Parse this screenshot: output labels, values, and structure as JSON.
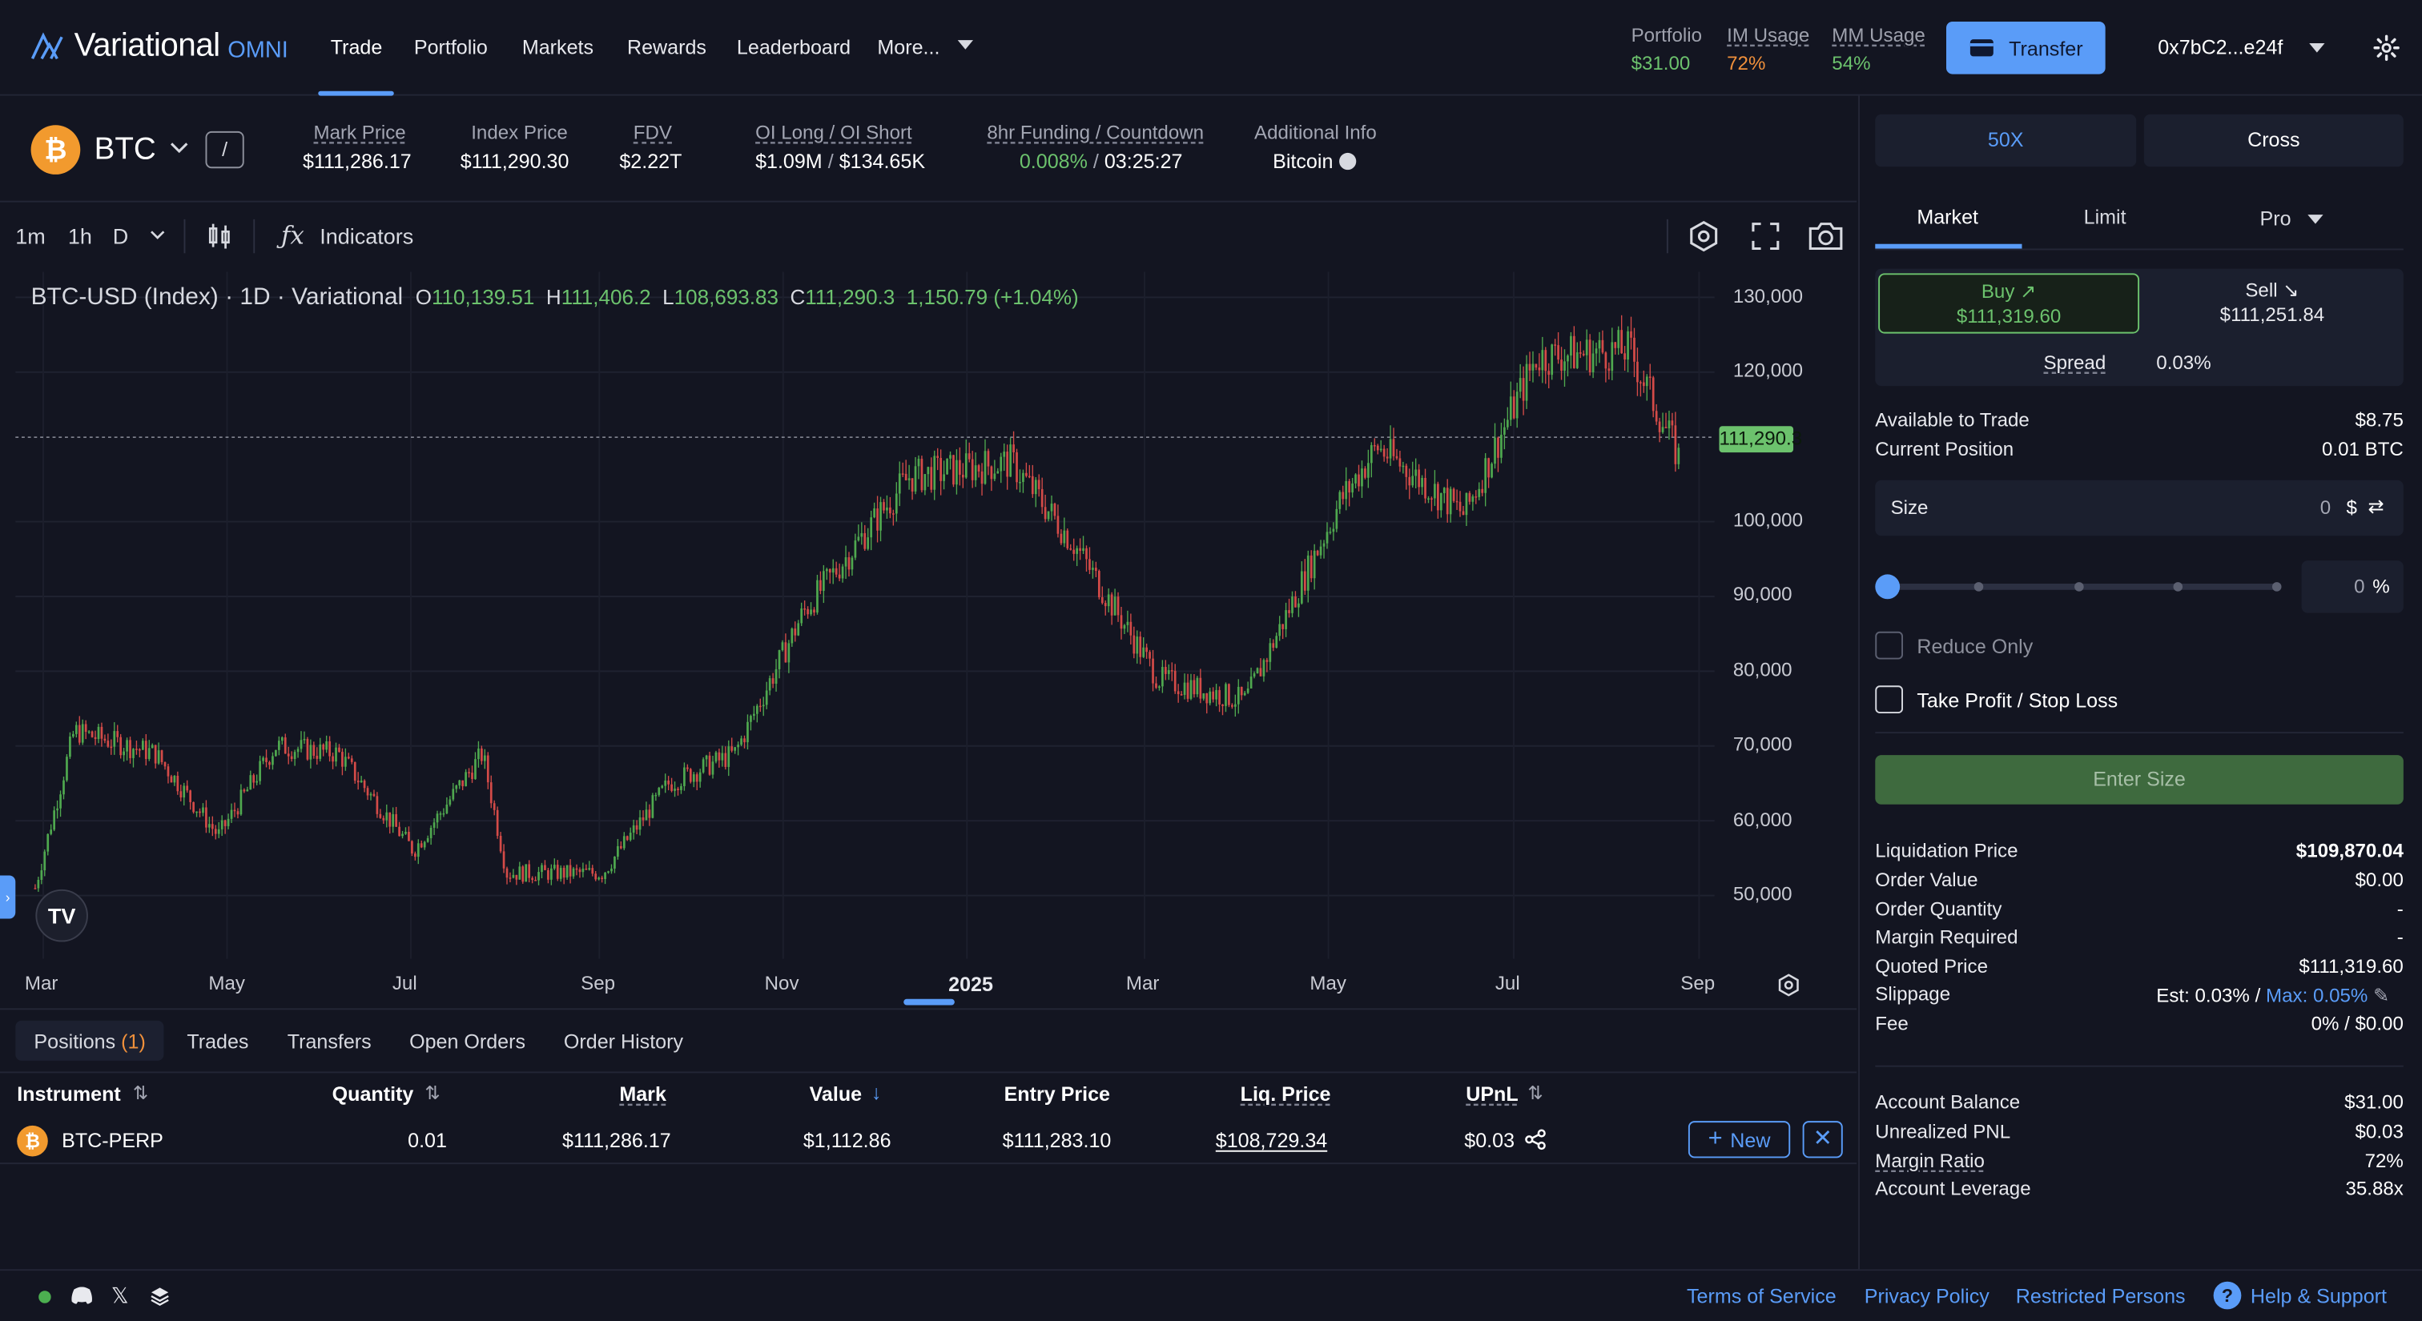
{
  "app": {
    "logo": "Variational",
    "logo_suffix": "OMNI"
  },
  "nav": {
    "items": [
      "Trade",
      "Portfolio",
      "Markets",
      "Rewards",
      "Leaderboard",
      "More..."
    ]
  },
  "header_stats": {
    "portfolio_label": "Portfolio",
    "portfolio_value": "$31.00",
    "im_label": "IM Usage",
    "im_value": "72%",
    "mm_label": "MM Usage",
    "mm_value": "54%"
  },
  "transfer_label": "Transfer",
  "wallet": "0x7bC2...e24f",
  "ticker": {
    "symbol": "BTC",
    "mark_label": "Mark Price",
    "mark_value": "$111,286.17",
    "index_label": "Index Price",
    "index_value": "$111,290.30",
    "fdv_label": "FDV",
    "fdv_value": "$2.22T",
    "oi_label": "OI Long / OI Short",
    "oi_long": "$1.09M",
    "oi_sep": "/",
    "oi_short": "$134.65K",
    "funding_label": "8hr Funding / Countdown",
    "funding_value": "0.008%",
    "funding_sep": "/",
    "countdown": "03:25:27",
    "info_label": "Additional Info",
    "info_value": "Bitcoin"
  },
  "chart_toolbar": {
    "intervals": [
      "1m",
      "1h",
      "D"
    ],
    "indicators": "Indicators"
  },
  "chart_legend": {
    "title": "BTC-USD (Index) · 1D · Variational",
    "o_label": "O",
    "o": "110,139.51",
    "h_label": "H",
    "h": "111,406.2",
    "l_label": "L",
    "l": "108,693.83",
    "c_label": "C",
    "c": "111,290.3",
    "change": "1,150.79 (+1.04%)"
  },
  "chart_data": {
    "type": "candlestick",
    "title": "BTC-USD (Index) · 1D · Variational",
    "x_ticks": [
      "Mar",
      "May",
      "Jul",
      "Sep",
      "Nov",
      "2025",
      "Mar",
      "May",
      "Jul",
      "Sep"
    ],
    "y_ticks": [
      130000,
      120000,
      100000,
      90000,
      80000,
      70000,
      60000,
      50000
    ],
    "ylim": [
      45000,
      132000
    ],
    "last_price_label": "111,290.3",
    "last_price": 111290.3,
    "approx_close_path": [
      {
        "x": "2024-03-01",
        "y": 51000
      },
      {
        "x": "2024-03-14",
        "y": 72000
      },
      {
        "x": "2024-04-10",
        "y": 69000
      },
      {
        "x": "2024-05-01",
        "y": 58000
      },
      {
        "x": "2024-05-20",
        "y": 70000
      },
      {
        "x": "2024-06-10",
        "y": 69000
      },
      {
        "x": "2024-07-05",
        "y": 56000
      },
      {
        "x": "2024-07-28",
        "y": 69000
      },
      {
        "x": "2024-08-05",
        "y": 53000
      },
      {
        "x": "2024-09-06",
        "y": 53000
      },
      {
        "x": "2024-09-28",
        "y": 65000
      },
      {
        "x": "2024-10-20",
        "y": 69000
      },
      {
        "x": "2024-11-12",
        "y": 88000
      },
      {
        "x": "2024-12-17",
        "y": 106000
      },
      {
        "x": "2025-01-20",
        "y": 108000
      },
      {
        "x": "2025-02-10",
        "y": 97000
      },
      {
        "x": "2025-03-10",
        "y": 79000
      },
      {
        "x": "2025-04-08",
        "y": 76000
      },
      {
        "x": "2025-05-10",
        "y": 103000
      },
      {
        "x": "2025-05-22",
        "y": 110000
      },
      {
        "x": "2025-06-20",
        "y": 101000
      },
      {
        "x": "2025-07-14",
        "y": 122000
      },
      {
        "x": "2025-08-14",
        "y": 123000
      },
      {
        "x": "2025-08-31",
        "y": 108000
      }
    ]
  },
  "bottom_tabs": {
    "positions": "Positions",
    "positions_count": "(1)",
    "trades": "Trades",
    "transfers": "Transfers",
    "open_orders": "Open Orders",
    "order_history": "Order History"
  },
  "positions_table": {
    "headers": {
      "instrument": "Instrument",
      "quantity": "Quantity",
      "mark": "Mark",
      "value": "Value",
      "entry": "Entry Price",
      "liq": "Liq. Price",
      "upnl": "UPnL"
    },
    "row": {
      "instrument": "BTC-PERP",
      "quantity": "0.01",
      "mark": "$111,286.17",
      "value": "$1,112.86",
      "entry": "$111,283.10",
      "liq": "$108,729.34",
      "upnl": "$0.03",
      "new": "New"
    }
  },
  "footer": {
    "terms": "Terms of Service",
    "privacy": "Privacy Policy",
    "restricted": "Restricted Persons",
    "help": "Help & Support"
  },
  "order_panel": {
    "leverage": "50X",
    "margin_mode": "Cross",
    "tabs": [
      "Market",
      "Limit",
      "Pro"
    ],
    "buy_label": "Buy",
    "buy_price": "$111,319.60",
    "sell_label": "Sell",
    "sell_price": "$111,251.84",
    "spread_label": "Spread",
    "spread_value": "0.03%",
    "available_label": "Available to Trade",
    "available_value": "$8.75",
    "position_label": "Current Position",
    "position_value": "0.01 BTC",
    "size_label": "Size",
    "size_value": "0",
    "size_unit": "$",
    "slider_pct": "0",
    "pct_unit": "%",
    "reduce_only": "Reduce Only",
    "tp_sl": "Take Profit / Stop Loss",
    "enter_size": "Enter Size",
    "details": [
      {
        "label": "Liquidation Price",
        "value": "$109,870.04"
      },
      {
        "label": "Order Value",
        "value": "$0.00"
      },
      {
        "label": "Order Quantity",
        "value": "-"
      },
      {
        "label": "Margin Required",
        "value": "-"
      },
      {
        "label": "Quoted Price",
        "value": "$111,319.60"
      }
    ],
    "slippage_label": "Slippage",
    "slippage_est": "Est: 0.03%",
    "slippage_sep": "/",
    "slippage_max": "Max: 0.05%",
    "fee_label": "Fee",
    "fee_value": "0% / $0.00",
    "account": [
      {
        "label": "Account Balance",
        "value": "$31.00"
      },
      {
        "label": "Unrealized PNL",
        "value": "$0.03"
      },
      {
        "label": "Margin Ratio",
        "value": "72%"
      },
      {
        "label": "Account Leverage",
        "value": "35.88x"
      }
    ]
  }
}
